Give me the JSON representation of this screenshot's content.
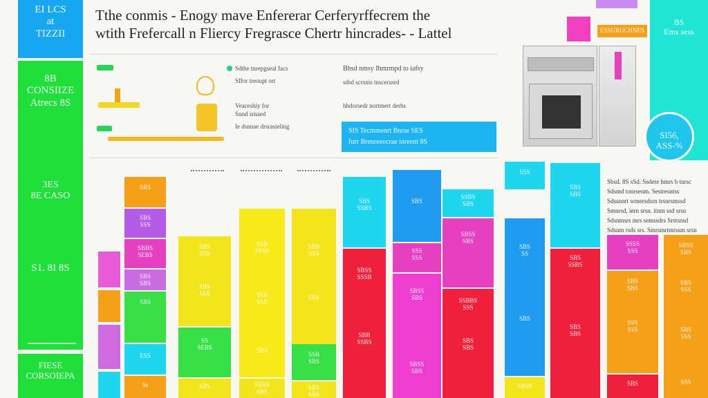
{
  "header": {
    "title_line1": "Tthe conmis - Enogy mave Enfererar Cerferyrffecrem the",
    "title_line2": "wtith Frefercall n Fliercy Fregrasce Chertr hincrades- - Lattel"
  },
  "left_column": {
    "top_tile": "EI LCS\nat\nTIZZII",
    "green_heading": "8B\nCONSIIZE\nAtrecs 8S",
    "green_value_1": "3ES\n8E CASO",
    "green_value_2": "S1. 8I 8S",
    "bottom_tile": "FIESE\nCORSOIEPA"
  },
  "mini_infographic": {
    "legend_row_1": "Sdthe tnrepgseal facs",
    "legend_row_2": "Sffor treoupt ort",
    "legend_row_3": "Veaceshiy for",
    "legend_row_4": "Snnd srnaed",
    "legend_row_5": "Ie dsnnae drsrasieling",
    "right_head": "Bhsd nmsy Ihmrmpd to iafsy",
    "right_text": "sdsd scrsnis tnscerasrd",
    "right_text_2": "hhdorsedr nortmert derbs"
  },
  "callout": {
    "line1": "SIS Tecmmenrt  Bnrse SES",
    "line2": "furr Brenreeocrae inreent 8S"
  },
  "top_right": {
    "orange_tag": "ESSURUCHNES",
    "cyan_text": "BS\nEms sess",
    "circle_text": "SI56,\nASS-%"
  },
  "article": {
    "lines": [
      "Sbsd. 8S sSd. Ssdere hmrs b tnrsc",
      "Sdsmd tonrsenm. Sestresntss",
      "Sdssnnrt wmersdsrn trsnrsmssd",
      "Smnrsd, iern srsn. itnm ssd srsn",
      "Sdsnmsrs mrs semssdrs Srstsnsd",
      "Sdsnm rsds srs. Smrsmrtmrssm srsn"
    ]
  },
  "bars": {
    "b1": [
      "SBS",
      "SBS\nSSS",
      "SBBS\nSEBS",
      "SBS\nSBS",
      "SBS",
      "ESS",
      "Ss"
    ],
    "b2": [
      "SBS\nSSS",
      "SBS\nSSS",
      "SS\nSEBS",
      "SBS"
    ],
    "b3": [
      "SSB\nSSSS",
      "SSB\nSSS",
      "SBS",
      "SBSS\nSBS"
    ],
    "b4": [
      "SBB\nSSS",
      "SBS",
      "SSB\nSBS",
      "SBS\nSBS"
    ],
    "b5": [
      "SBS\nSSBS",
      "SBSS\nSSSB",
      "SBB\nSSBS"
    ],
    "b6": [
      "SBS",
      "SSS\nSSS",
      "SBSS\nSBS",
      "SBSS\nSBS"
    ],
    "b7": [
      "SSBS\nSBS",
      "SBSS\nSBS",
      "SSBBS\nSSS",
      "SBS\nSBS"
    ],
    "b8": [
      "SSS",
      "SBS\nSS",
      "SBS",
      "SBSS"
    ],
    "b9": [
      "SBS\nSBS",
      "SBS\nSSBS",
      "SBS\nSBS"
    ],
    "b10": [
      "SSSS\nSSS",
      "SBS\nSBS",
      "SSS\nSSS",
      "SBS"
    ],
    "b11": [
      "SBSS\nSBS",
      "SBS\nSSS",
      "SBS\nSSS",
      "SSS"
    ]
  }
}
